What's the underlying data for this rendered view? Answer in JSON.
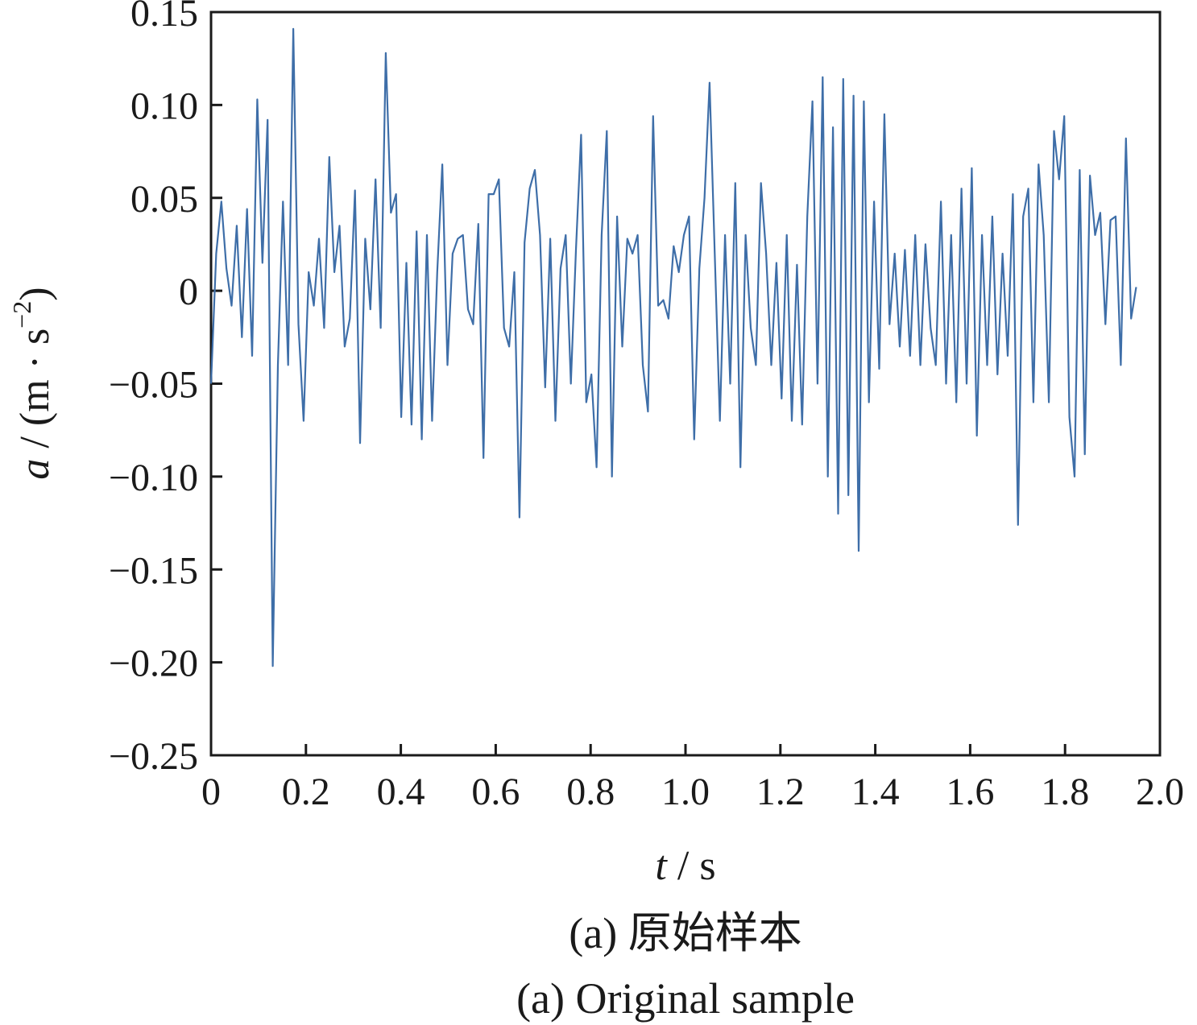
{
  "chart_data": {
    "type": "line",
    "xlabel": {
      "symbol": "t",
      "unit": " / s"
    },
    "ylabel": {
      "symbol": "a",
      "unit_prefix": " / (m · s",
      "unit_exp": "−2",
      "unit_suffix": ")"
    },
    "xlim": [
      0,
      2.0
    ],
    "ylim": [
      -0.25,
      0.15
    ],
    "x_ticks": [
      0,
      0.2,
      0.4,
      0.6,
      0.8,
      1.0,
      1.2,
      1.4,
      1.6,
      1.8,
      2.0
    ],
    "x_tick_labels": [
      "0",
      "0.2",
      "0.4",
      "0.6",
      "0.8",
      "1.0",
      "1.2",
      "1.4",
      "1.6",
      "1.8",
      "2.0"
    ],
    "y_ticks": [
      0.15,
      0.1,
      0.05,
      0,
      -0.05,
      -0.1,
      -0.15,
      -0.2,
      -0.25
    ],
    "y_tick_labels": [
      "0.15",
      "0.10",
      "0.05",
      "0",
      "−0.05",
      "−0.10",
      "−0.15",
      "−0.20",
      "−0.25"
    ],
    "grid": false,
    "legend": "none",
    "series": [
      {
        "color": "#3e6ea8",
        "x_start": 0,
        "x_end": 1.95,
        "values": [
          -0.05,
          0.02,
          0.048,
          0.012,
          -0.008,
          0.035,
          -0.025,
          0.044,
          -0.035,
          0.103,
          0.015,
          0.092,
          -0.202,
          -0.04,
          0.048,
          -0.04,
          0.141,
          -0.018,
          -0.07,
          0.01,
          -0.008,
          0.028,
          -0.02,
          0.072,
          0.01,
          0.035,
          -0.03,
          -0.015,
          0.054,
          -0.082,
          0.028,
          -0.01,
          0.06,
          -0.02,
          0.128,
          0.042,
          0.052,
          -0.068,
          0.015,
          -0.072,
          0.032,
          -0.08,
          0.03,
          -0.07,
          0.01,
          0.068,
          -0.04,
          0.02,
          0.028,
          0.03,
          -0.01,
          -0.018,
          0.036,
          -0.09,
          0.052,
          0.052,
          0.06,
          -0.02,
          -0.03,
          0.01,
          -0.122,
          0.026,
          0.055,
          0.065,
          0.03,
          -0.052,
          0.028,
          -0.07,
          0.012,
          0.03,
          -0.05,
          0.022,
          0.084,
          -0.06,
          -0.045,
          -0.095,
          0.03,
          0.086,
          -0.1,
          0.04,
          -0.03,
          0.028,
          0.02,
          0.03,
          -0.04,
          -0.065,
          0.094,
          -0.008,
          -0.005,
          -0.015,
          0.024,
          0.01,
          0.03,
          0.04,
          -0.08,
          0.012,
          0.05,
          0.112,
          0.02,
          -0.07,
          0.03,
          -0.05,
          0.058,
          -0.095,
          0.03,
          -0.02,
          -0.04,
          0.058,
          0.02,
          -0.04,
          0.015,
          -0.058,
          0.03,
          -0.07,
          0.014,
          -0.072,
          0.04,
          0.102,
          -0.05,
          0.115,
          -0.1,
          0.088,
          -0.12,
          0.114,
          -0.11,
          0.105,
          -0.14,
          0.102,
          -0.06,
          0.048,
          -0.042,
          0.095,
          -0.018,
          0.02,
          -0.03,
          0.022,
          -0.035,
          0.03,
          -0.04,
          0.025,
          -0.02,
          -0.04,
          0.048,
          -0.05,
          0.03,
          -0.06,
          0.055,
          -0.05,
          0.066,
          -0.078,
          0.03,
          -0.04,
          0.04,
          -0.045,
          0.02,
          -0.035,
          0.052,
          -0.126,
          0.04,
          0.055,
          -0.06,
          0.068,
          0.03,
          -0.06,
          0.086,
          0.06,
          0.094,
          -0.068,
          -0.1,
          0.065,
          -0.088,
          0.062,
          0.03,
          0.042,
          -0.018,
          0.038,
          0.04,
          -0.04,
          0.082,
          -0.015,
          0.002
        ]
      }
    ],
    "caption_zh": "(a)  原始样本",
    "caption_en": "(a)  Original sample"
  }
}
